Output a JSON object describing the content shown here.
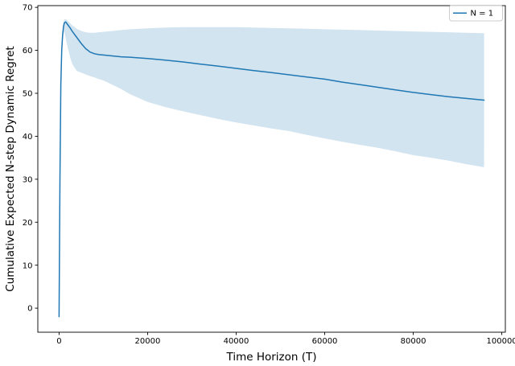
{
  "figure": {
    "background": "#ffffff",
    "accent_color": "#1f77b4"
  },
  "legend": {
    "label": "N = 1",
    "position": "upper right",
    "line_color": "#1f77b4",
    "border_color": "#cccccc"
  },
  "chart_data": {
    "type": "line",
    "title": "",
    "xlabel": "Time Horizon (T)",
    "ylabel": "Cumulative Expected N-step Dynamic Regret",
    "xlim": [
      -4800,
      100800
    ],
    "ylim": [
      -5.6,
      70.4
    ],
    "x_ticks": [
      0,
      20000,
      40000,
      60000,
      80000,
      100000
    ],
    "y_ticks": [
      0,
      10,
      20,
      30,
      40,
      50,
      60,
      70
    ],
    "grid": false,
    "legend_position": "upper right",
    "series": [
      {
        "name": "N = 1",
        "color": "#1f77b4",
        "line_width": 1.5,
        "band_color": "#1f77b4",
        "band_opacity": 0.2,
        "x": [
          0,
          200,
          400,
          600,
          800,
          1000,
          1200,
          1500,
          2000,
          2500,
          3000,
          4000,
          5000,
          6000,
          7000,
          8000,
          9000,
          10000,
          12000,
          14000,
          16000,
          20000,
          24000,
          28000,
          32000,
          36000,
          40000,
          44000,
          48000,
          52000,
          56000,
          60000,
          64000,
          68000,
          72000,
          76000,
          80000,
          84000,
          88000,
          92000,
          96000
        ],
        "y": [
          -2,
          30,
          52,
          60,
          63.5,
          65.5,
          66.4,
          66.6,
          65.9,
          65.2,
          64.4,
          63.0,
          61.6,
          60.4,
          59.6,
          59.2,
          59.0,
          58.9,
          58.7,
          58.5,
          58.4,
          58.1,
          57.7,
          57.3,
          56.8,
          56.3,
          55.8,
          55.3,
          54.8,
          54.3,
          53.8,
          53.3,
          52.6,
          52.0,
          51.4,
          50.8,
          50.2,
          49.7,
          49.2,
          48.8,
          48.4
        ],
        "band_upper": [
          -2,
          31,
          53.5,
          61.5,
          65,
          66.5,
          67.2,
          67.3,
          66.8,
          66.3,
          65.8,
          65.0,
          64.5,
          64.2,
          64.1,
          64.1,
          64.2,
          64.3,
          64.5,
          64.7,
          64.9,
          65.1,
          65.3,
          65.4,
          65.4,
          65.4,
          65.4,
          65.3,
          65.2,
          65.1,
          65.0,
          64.9,
          64.8,
          64.7,
          64.6,
          64.5,
          64.4,
          64.3,
          64.2,
          64.1,
          64.0
        ],
        "band_lower": [
          -2,
          29,
          50.5,
          58.5,
          62,
          64,
          64.3,
          62.7,
          60.5,
          58.3,
          56.8,
          55.2,
          54.8,
          54.4,
          54.0,
          53.7,
          53.3,
          53.0,
          52.0,
          51.0,
          49.8,
          48.0,
          46.8,
          45.8,
          44.9,
          44.0,
          43.2,
          42.5,
          41.8,
          41.2,
          40.3,
          39.5,
          38.7,
          38.0,
          37.3,
          36.5,
          35.6,
          35.0,
          34.3,
          33.5,
          32.8
        ]
      }
    ]
  }
}
